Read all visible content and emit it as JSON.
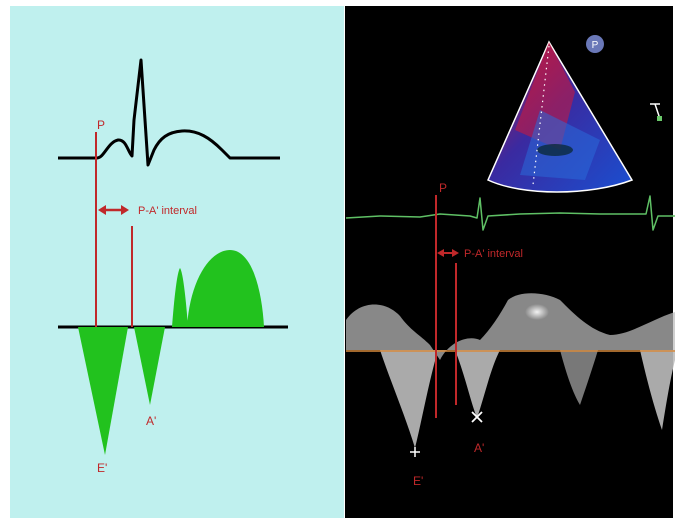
{
  "left_panel": {
    "p_label": "P",
    "interval_label": "P-A' interval",
    "e_label": "E'",
    "a_label": "A'"
  },
  "right_panel": {
    "p_label": "P",
    "interval_label": "P-A' interval",
    "e_label": "E'",
    "a_label": "A'",
    "probe_badge": "P"
  },
  "colors": {
    "left_bg": "#bff0ee",
    "right_bg": "#000000",
    "annotation_red": "#c0282a",
    "wave_green": "#22c21e",
    "ecg_green": "#5fc065",
    "baseline_orange": "#d88a3c"
  }
}
